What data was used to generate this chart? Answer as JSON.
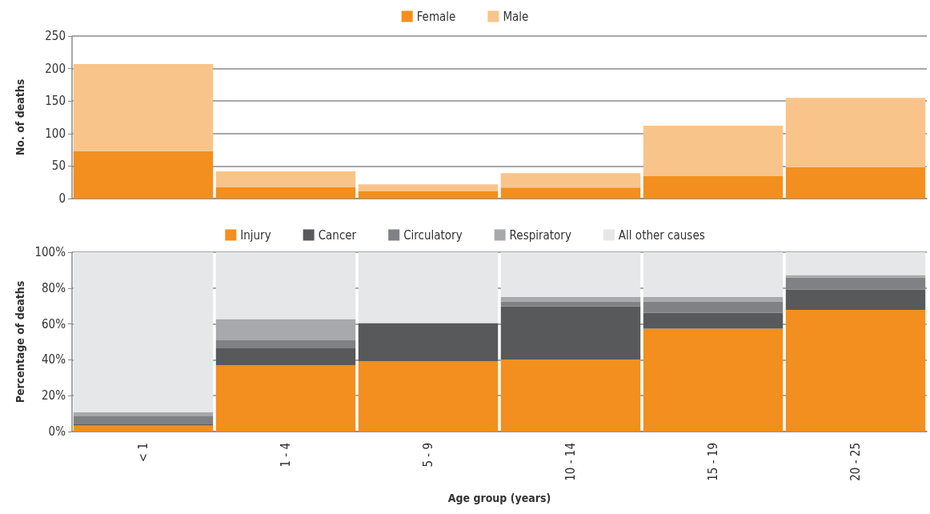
{
  "chart_data": [
    {
      "type": "bar",
      "stacked": true,
      "categories": [
        null,
        null,
        null,
        null,
        null,
        null
      ],
      "ylabel": "No. of deaths",
      "ylim": [
        0,
        250
      ],
      "yticks": [
        0,
        50,
        100,
        150,
        200,
        250
      ],
      "grid": "y",
      "legend": "top",
      "series": [
        {
          "name": "Female",
          "color": "#f28f1e",
          "values": [
            73,
            18,
            11,
            17,
            35,
            48
          ]
        },
        {
          "name": "Male",
          "color": "#f9c48a",
          "values": [
            134,
            24,
            11,
            22,
            77,
            107
          ]
        }
      ]
    },
    {
      "type": "bar",
      "stacked": true,
      "categories": [
        "< 1",
        "1 - 4",
        "5 - 9",
        "10 - 14",
        "15 - 19",
        "20 - 25"
      ],
      "xlabel": "Age group (years)",
      "ylabel": "Percentage of deaths",
      "ylim": [
        0,
        100
      ],
      "yticks": [
        {
          "value": 0,
          "label": "0%"
        },
        {
          "value": 20,
          "label": "20%"
        },
        {
          "value": 40,
          "label": "40%"
        },
        {
          "value": 60,
          "label": "60%"
        },
        {
          "value": 80,
          "label": "80%"
        },
        {
          "value": 100,
          "label": "100%"
        }
      ],
      "grid": "y",
      "legend": "top",
      "series": [
        {
          "name": "Injury",
          "color": "#f28f1e",
          "values": [
            3.3,
            37.1,
            39.2,
            40.2,
            57.4,
            67.9
          ]
        },
        {
          "name": "Cancer",
          "color": "#58595b",
          "values": [
            1.0,
            9.3,
            21.3,
            29.7,
            8.9,
            11.3
          ]
        },
        {
          "name": "Circulatory",
          "color": "#808184",
          "values": [
            4.5,
            4.5,
            0,
            2.6,
            6.2,
            6.7
          ]
        },
        {
          "name": "Respiratory",
          "color": "#a7a9ac",
          "values": [
            2.0,
            11.8,
            0,
            2.6,
            2.6,
            1.4
          ]
        },
        {
          "name": "All other causes",
          "color": "#e6e7e8",
          "values": [
            89.2,
            37.3,
            39.5,
            24.9,
            24.9,
            12.7
          ]
        }
      ]
    }
  ]
}
